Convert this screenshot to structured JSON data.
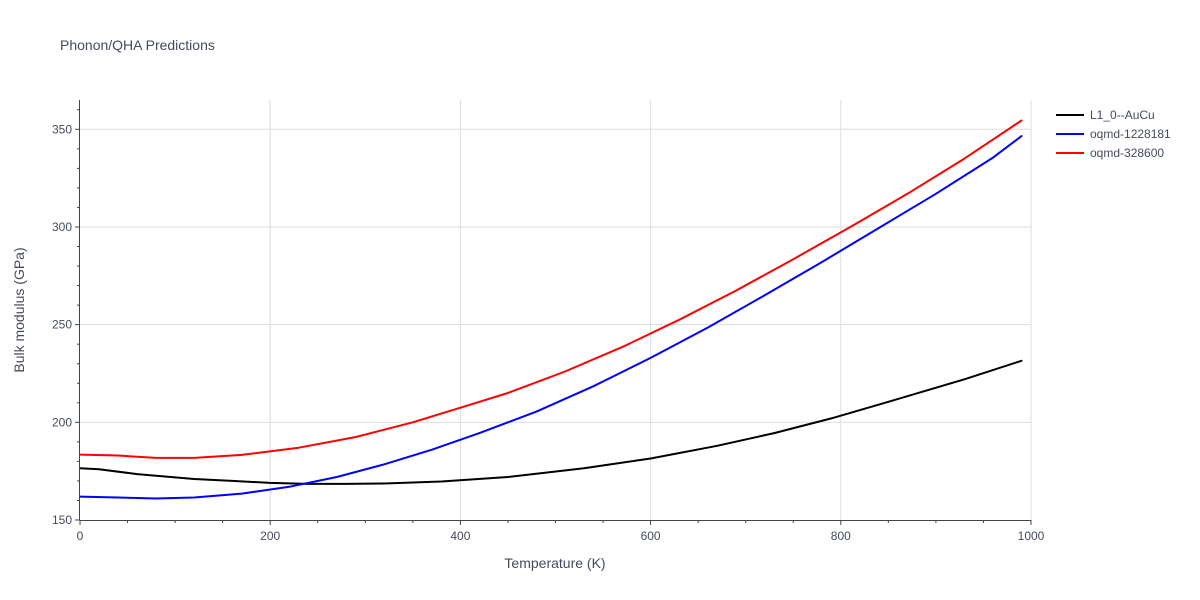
{
  "chart_data": {
    "type": "line",
    "title": "Phonon/QHA Predictions",
    "xlabel": "Temperature (K)",
    "ylabel": "Bulk modulus (GPa)",
    "xlim": [
      0,
      1000
    ],
    "ylim": [
      150,
      365
    ],
    "xticks": [
      0,
      200,
      400,
      600,
      800,
      1000
    ],
    "yticks": [
      150,
      200,
      250,
      300,
      350
    ],
    "grid": true,
    "legend_position": "top-right",
    "series": [
      {
        "name": "L1_0--AuCu",
        "color": "#000000",
        "x": [
          0,
          20,
          60,
          120,
          160,
          200,
          240,
          280,
          320,
          380,
          450,
          530,
          600,
          670,
          730,
          790,
          850,
          930,
          990
        ],
        "y": [
          176.5,
          176,
          173.5,
          171,
          170,
          169,
          168.5,
          168.5,
          168.7,
          169.7,
          172,
          176.5,
          181.5,
          188,
          194.5,
          202,
          210.5,
          222,
          231.5
        ]
      },
      {
        "name": "oqmd-1228181",
        "color": "#0000ff",
        "x": [
          0,
          40,
          80,
          120,
          170,
          220,
          270,
          320,
          370,
          420,
          480,
          540,
          600,
          660,
          720,
          780,
          840,
          900,
          960,
          990
        ],
        "y": [
          162,
          161.5,
          161,
          161.5,
          163.5,
          167,
          172,
          178.5,
          186,
          194.5,
          205.5,
          218.5,
          233,
          248.5,
          265,
          282,
          299.5,
          317,
          335.5,
          346.5
        ]
      },
      {
        "name": "oqmd-328600",
        "color": "#ff0000",
        "x": [
          0,
          40,
          80,
          120,
          170,
          230,
          290,
          350,
          400,
          450,
          510,
          570,
          630,
          690,
          750,
          810,
          870,
          930,
          990
        ],
        "y": [
          183.5,
          183,
          181.8,
          181.8,
          183.3,
          187,
          192.5,
          200,
          207.5,
          215,
          226,
          238.5,
          252.5,
          267.5,
          283.5,
          300,
          317,
          335,
          354.5
        ]
      }
    ]
  }
}
